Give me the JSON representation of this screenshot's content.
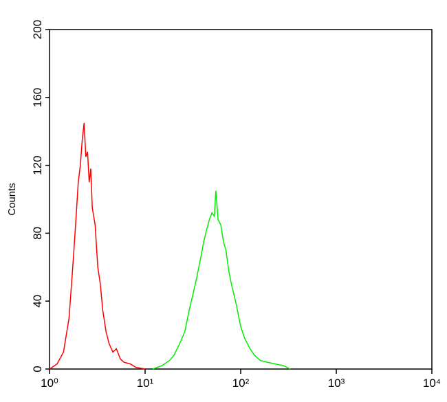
{
  "chart_data": {
    "type": "line",
    "ylabel": "Counts",
    "xscale": "log",
    "xlim": [
      1,
      10000
    ],
    "ylim": [
      0,
      200
    ],
    "xticks": [
      {
        "value": 1,
        "label": "10⁰"
      },
      {
        "value": 10,
        "label": "10¹"
      },
      {
        "value": 100,
        "label": "10²"
      },
      {
        "value": 1000,
        "label": "10³"
      },
      {
        "value": 10000,
        "label": "10⁴"
      }
    ],
    "yticks": [
      0,
      40,
      80,
      120,
      160,
      200
    ],
    "series": [
      {
        "color": "#ff0000",
        "x": [
          1.0,
          1.2,
          1.4,
          1.6,
          1.7,
          1.8,
          1.9,
          2.0,
          2.1,
          2.2,
          2.3,
          2.4,
          2.5,
          2.6,
          2.7,
          2.8,
          3.0,
          3.2,
          3.4,
          3.6,
          3.9,
          4.2,
          4.6,
          5.0,
          5.5,
          6,
          7,
          8,
          10
        ],
        "values": [
          0,
          3,
          10,
          30,
          50,
          70,
          90,
          110,
          120,
          135,
          145,
          125,
          128,
          110,
          118,
          95,
          85,
          60,
          50,
          35,
          22,
          15,
          10,
          12,
          6,
          4,
          3,
          1,
          0
        ]
      },
      {
        "color": "#00ee00",
        "x": [
          12,
          15,
          18,
          20,
          23,
          26,
          29,
          32,
          35,
          38,
          41,
          44,
          47,
          50,
          53,
          55,
          58,
          62,
          66,
          70,
          75,
          80,
          90,
          100,
          110,
          125,
          140,
          160,
          190,
          230,
          280,
          330
        ],
        "values": [
          0,
          2,
          5,
          8,
          15,
          22,
          35,
          45,
          55,
          65,
          75,
          82,
          88,
          92,
          90,
          105,
          88,
          85,
          75,
          70,
          58,
          50,
          38,
          25,
          18,
          12,
          8,
          5,
          4,
          3,
          2,
          0
        ]
      }
    ]
  }
}
